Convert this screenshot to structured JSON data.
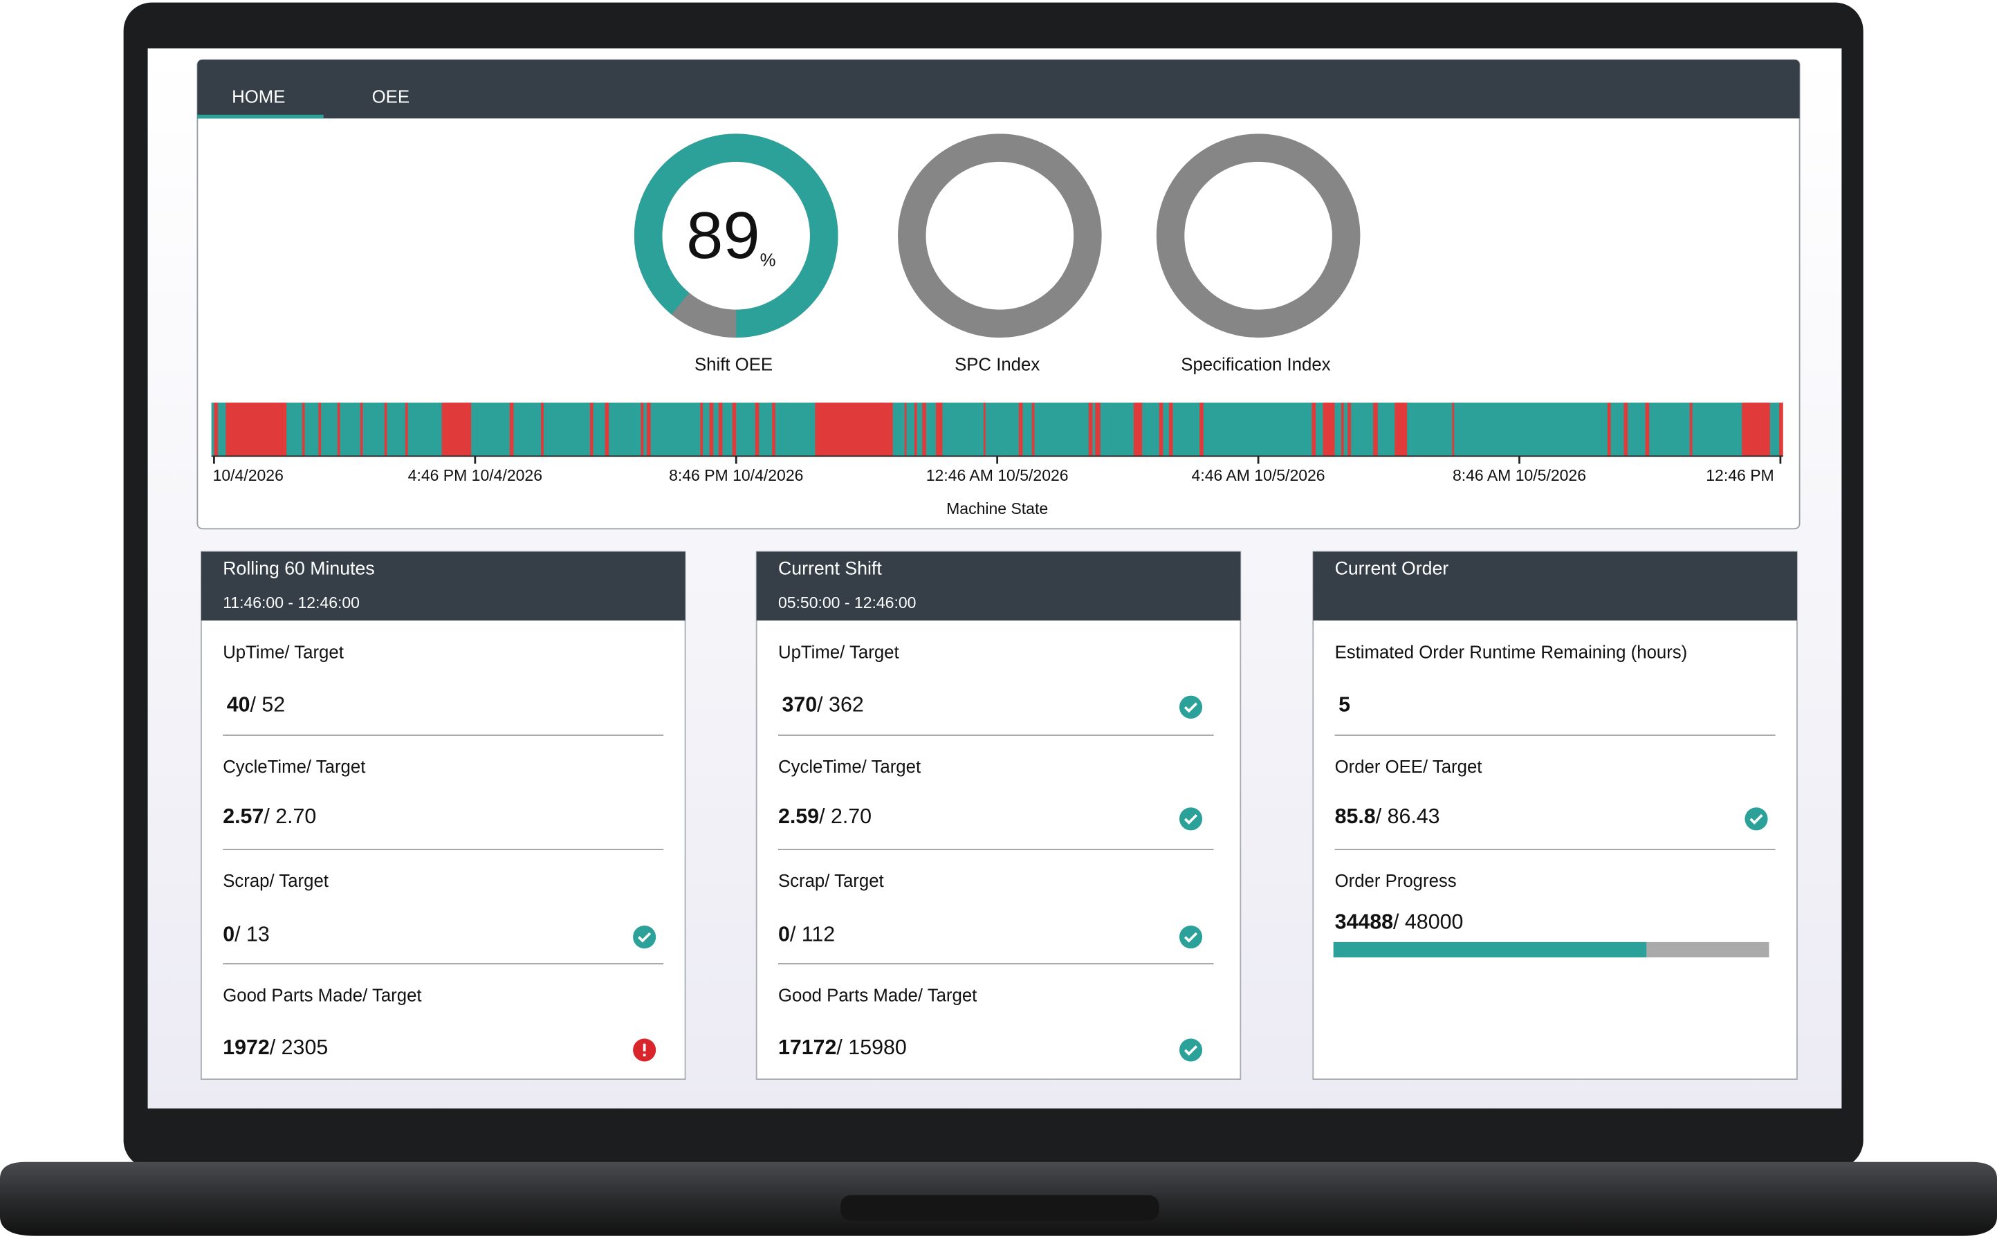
{
  "tabs": [
    "HOME",
    "OEE"
  ],
  "gauges": [
    {
      "label": "Shift OEE",
      "value": 89,
      "unit": "%",
      "range": [
        0,
        100
      ]
    },
    {
      "label": "SPC Index"
    },
    {
      "label": "Specification Index"
    }
  ],
  "machine_state": {
    "title": "Machine State",
    "xlim": [
      -0.04,
      24.04
    ],
    "xticks": [
      {
        "value": 0,
        "label": "10/4/2026"
      },
      {
        "value": 4,
        "label": "4:46 PM 10/4/2026"
      },
      {
        "value": 8,
        "label": "8:46 PM 10/4/2026"
      },
      {
        "value": 12,
        "label": "12:46 AM 10/5/2026"
      },
      {
        "value": 16,
        "label": "4:46 AM 10/5/2026"
      },
      {
        "value": 20,
        "label": "8:46 AM 10/5/2026"
      },
      {
        "value": 24,
        "label": "12:46 PM"
      }
    ],
    "up_color": "#2ba199",
    "down_color": "#e03a3a",
    "down_intervals": [
      [
        0,
        0.06
      ],
      [
        0.18,
        1.11
      ],
      [
        1.35,
        1.39
      ],
      [
        1.6,
        1.64
      ],
      [
        1.89,
        1.93
      ],
      [
        2.24,
        2.28
      ],
      [
        2.61,
        2.65
      ],
      [
        2.93,
        2.97
      ],
      [
        3.49,
        3.94
      ],
      [
        4.53,
        4.59
      ],
      [
        5.01,
        5.05
      ],
      [
        5.76,
        5.81
      ],
      [
        5.99,
        6.05
      ],
      [
        6.54,
        6.58
      ],
      [
        6.63,
        6.69
      ],
      [
        7.45,
        7.49
      ],
      [
        7.59,
        7.65
      ],
      [
        7.73,
        7.79
      ],
      [
        7.94,
        8.0
      ],
      [
        8.29,
        8.35
      ],
      [
        8.55,
        8.6
      ],
      [
        9.21,
        10.4
      ],
      [
        10.58,
        10.61
      ],
      [
        10.73,
        10.77
      ],
      [
        10.85,
        10.91
      ],
      [
        11.06,
        11.16
      ],
      [
        11.79,
        11.82
      ],
      [
        12.33,
        12.39
      ],
      [
        12.53,
        12.57
      ],
      [
        13.4,
        13.46
      ],
      [
        13.5,
        13.58
      ],
      [
        14.09,
        14.22
      ],
      [
        14.48,
        14.54
      ],
      [
        14.63,
        14.69
      ],
      [
        15.1,
        15.16
      ],
      [
        16.82,
        16.88
      ],
      [
        16.99,
        17.17
      ],
      [
        17.27,
        17.31
      ],
      [
        17.37,
        17.42
      ],
      [
        17.76,
        17.83
      ],
      [
        18.09,
        18.28
      ],
      [
        18.97,
        19.0
      ],
      [
        21.35,
        21.4
      ],
      [
        21.6,
        21.66
      ],
      [
        21.93,
        21.99
      ],
      [
        22.61,
        22.65
      ],
      [
        23.41,
        23.84
      ],
      [
        23.98,
        24.04
      ]
    ]
  },
  "separator": "/ ",
  "panels": [
    {
      "title": "Rolling 60 Minutes",
      "subtitle": "11:46:00 - 12:46:00",
      "rows": [
        {
          "label": "UpTime/ Target",
          "value": 40,
          "target": 52
        },
        {
          "label": "CycleTime/ Target",
          "value": 2.57,
          "target": "2.70"
        },
        {
          "label": "Scrap/ Target",
          "value": 0,
          "target": 13,
          "status": "ok"
        },
        {
          "label": "Good Parts Made/ Target",
          "value": 1972,
          "target": 2305,
          "status": "alert"
        }
      ]
    },
    {
      "title": "Current Shift",
      "subtitle": "05:50:00 - 12:46:00",
      "rows": [
        {
          "label": "UpTime/ Target",
          "value": 370,
          "target": 362,
          "status": "ok"
        },
        {
          "label": "CycleTime/ Target",
          "value": 2.59,
          "target": "2.70",
          "status": "ok"
        },
        {
          "label": "Scrap/ Target",
          "value": 0,
          "target": 112,
          "status": "ok"
        },
        {
          "label": "Good Parts Made/ Target",
          "value": 17172,
          "target": 15980,
          "status": "ok"
        }
      ]
    },
    {
      "title": "Current Order",
      "rows": [
        {
          "label": "Estimated Order Runtime Remaining (hours)",
          "value": 5
        },
        {
          "label": "Order OEE/ Target",
          "value": 85.8,
          "target": 86.43,
          "status": "ok"
        },
        {
          "label": "Order Progress",
          "value": 34488,
          "target": 48000,
          "progress": true
        }
      ]
    }
  ]
}
